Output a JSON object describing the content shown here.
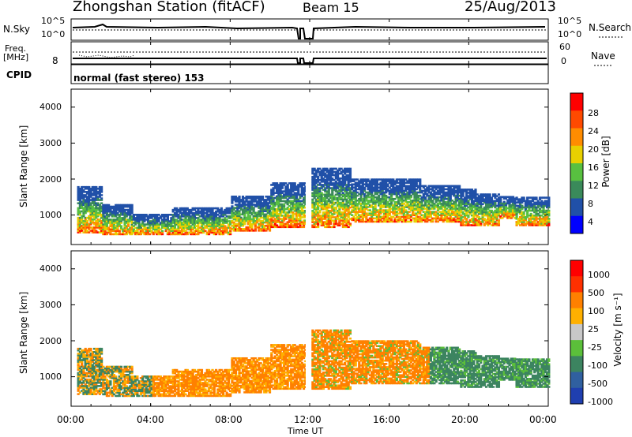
{
  "header": {
    "station": "Zhongshan Station (fitACF)",
    "beam": "Beam 15",
    "date": "25/Aug/2013"
  },
  "top_panels": {
    "nsky_label": "N.Sky",
    "nsky_ticks": [
      "10^5",
      "10^0"
    ],
    "nsearch_label": "N.Search",
    "nsearch_ticks": [
      "10^5",
      "10^0"
    ],
    "freq_label": "Freq.",
    "freq_unit": "[MHz]",
    "freq_tick": "8",
    "nave_label": "Nave",
    "nave_ticks": [
      "60",
      "0"
    ],
    "cpid_label": "CPID",
    "cpid_text": "normal (fast stereo) 153"
  },
  "chart_data": [
    {
      "type": "heatmap",
      "panel": "power",
      "ylabel": "Slant Range [km]",
      "yticks": [
        "4000",
        "3000",
        "2000",
        "1000"
      ],
      "ylim": [
        180,
        4500
      ],
      "colorbar_label": "Power [dB]",
      "colorbar_ticks": [
        "28",
        "24",
        "20",
        "16",
        "12",
        "8",
        "4"
      ],
      "colorbar_colors": [
        "#0000ff",
        "#2050a8",
        "#3a8a5a",
        "#58c040",
        "#e8d000",
        "#ff8c00",
        "#ff4a00",
        "#ff0000"
      ],
      "data_gap_hours": [
        11.8,
        12.0
      ]
    },
    {
      "type": "heatmap",
      "panel": "velocity",
      "ylabel": "Slant Range [km]",
      "yticks": [
        "4000",
        "3000",
        "2000",
        "1000"
      ],
      "ylim": [
        180,
        4500
      ],
      "colorbar_label": "Velocity [m s⁻¹]",
      "colorbar_ticks": [
        "1000",
        "500",
        "100",
        "25",
        "-25",
        "-100",
        "-500",
        "-1000"
      ],
      "colorbar_colors": [
        "#1f3fb0",
        "#3060a0",
        "#3c8460",
        "#5bbf3a",
        "#c8c8c8",
        "#ffb000",
        "#ff8000",
        "#ff3000",
        "#ff0000"
      ],
      "data_gap_hours": [
        11.8,
        12.0
      ]
    }
  ],
  "xaxis": {
    "label": "Time UT",
    "ticks": [
      "00:00",
      "04:00",
      "08:00",
      "12:00",
      "16:00",
      "20:00",
      "00:00"
    ]
  }
}
